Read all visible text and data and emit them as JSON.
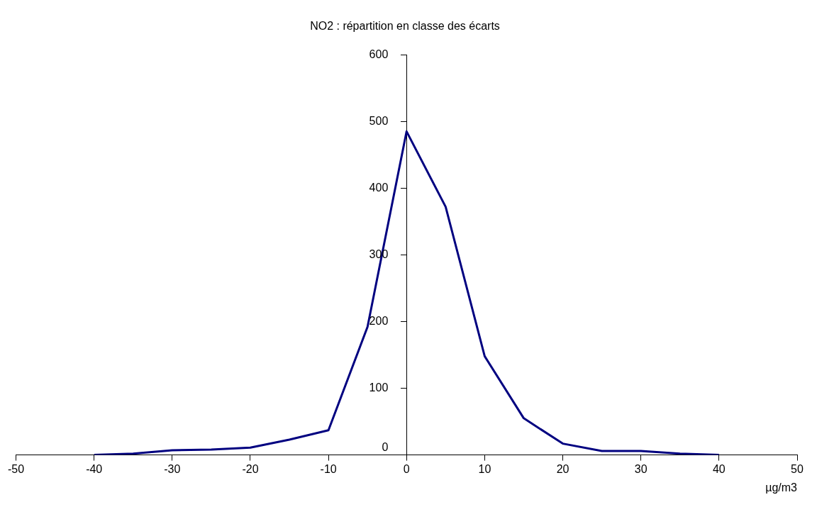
{
  "chart_data": {
    "type": "line",
    "title": "NO2 : répartition en classe des écarts",
    "xlabel": "µg/m3",
    "x": [
      -40,
      -35,
      -30,
      -25,
      -20,
      -15,
      -10,
      -5,
      0,
      5,
      10,
      15,
      20,
      25,
      30,
      35,
      40
    ],
    "series": [
      {
        "color": "#000080",
        "values": [
          0,
          2,
          7,
          8,
          11,
          23,
          37,
          192,
          485,
          372,
          148,
          55,
          17,
          6,
          6,
          2,
          0
        ]
      }
    ],
    "xlim": [
      -50,
      50
    ],
    "xticks": [
      -50,
      -40,
      -30,
      -20,
      -10,
      0,
      10,
      20,
      30,
      40,
      50
    ],
    "ylim": [
      0,
      600
    ],
    "yticks": [
      0,
      100,
      200,
      300,
      400,
      500,
      600
    ],
    "grid": false,
    "legend": false,
    "marker": "none",
    "line_style": "solid"
  }
}
